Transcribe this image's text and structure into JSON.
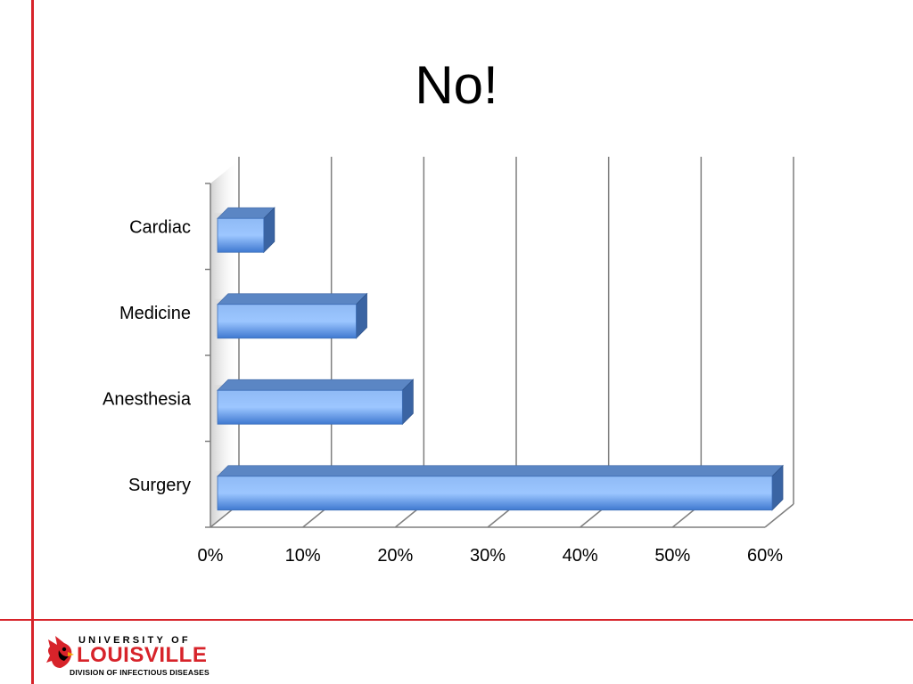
{
  "slide": {
    "title": "No!"
  },
  "chart_data": {
    "type": "bar",
    "orientation": "horizontal",
    "style": "3d-clustered",
    "categories": [
      "Cardiac",
      "Medicine",
      "Anesthesia",
      "Surgery"
    ],
    "series": [
      {
        "values": [
          5,
          15,
          20,
          60
        ]
      }
    ],
    "xlim": [
      0,
      60
    ],
    "x_ticks": [
      "0%",
      "10%",
      "20%",
      "30%",
      "40%",
      "50%",
      "60%"
    ],
    "x_tick_values": [
      0,
      10,
      20,
      30,
      40,
      50,
      60
    ],
    "grid": true,
    "legend": "none",
    "bar_color": "#6fa3e6"
  },
  "footer": {
    "logo_line1": "UNIVERSITY OF",
    "logo_line2": "LOUISVILLE",
    "logo_line3": "DIVISION OF INFECTIOUS DISEASES",
    "accent_color": "#d7232a"
  }
}
